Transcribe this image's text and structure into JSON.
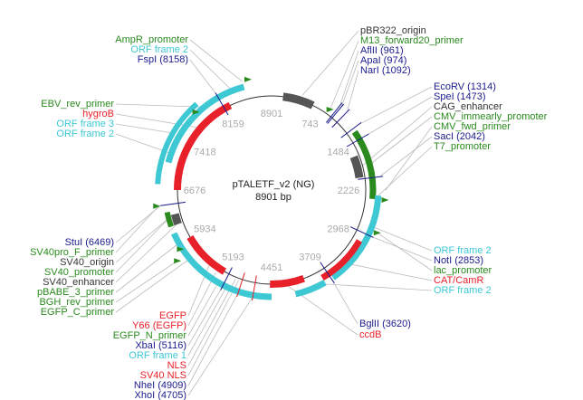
{
  "map": {
    "name": "pTALETF_v2 (NG)",
    "size": "8901 bp"
  },
  "ticks": [
    "8901",
    "743",
    "1484",
    "2226",
    "2968",
    "3709",
    "4451",
    "5193",
    "5934",
    "6676",
    "7418",
    "8159"
  ],
  "colors": {
    "promoter": "#2a8a1e",
    "orf": "#3ec8d4",
    "site": "#1a1a8c",
    "gene": "#e8202a",
    "origin": "#555555",
    "backbone": "#333333",
    "leader": "#bbbbbb"
  },
  "labels": {
    "ampr_promoter": "AmpR_promoter",
    "orf_frame_2_top": "ORF frame 2",
    "fspi": "FspI (8158)",
    "ebv_rev_primer": "EBV_rev_primer",
    "hygrob": "hygroB",
    "orf_frame_3": "ORF frame 3",
    "orf_frame_2_left": "ORF frame 2",
    "stui": "StuI (6469)",
    "sv40pro_f_primer": "SV40pro_F_primer",
    "sv40_origin": "SV40_origin",
    "sv40_promoter": "SV40_promoter",
    "sv40_enhancer": "SV40_enhancer",
    "pbabe_3_primer": "pBABE_3_primer",
    "bgh_rev_primer": "BGH_rev_primer",
    "egfp_c_primer": "EGFP_C_primer",
    "egfp": "EGFP",
    "y66_egfp": "Y66 (EGFP)",
    "egfp_n_primer": "EGFP_N_primer",
    "xbai": "XbaI (5116)",
    "orf_frame_1": "ORF frame 1",
    "nls": "NLS",
    "sv40_nls": "SV40 NLS",
    "nhei": "NheI (4909)",
    "xhoi": "XhoI (4705)",
    "pbr322_origin": "pBR322_origin",
    "m13_forward20_primer": "M13_forward20_primer",
    "aflii": "AflII (961)",
    "apai": "ApaI (974)",
    "nari": "NarI (1092)",
    "ecorv": "EcoRV (1314)",
    "spei": "SpeI (1473)",
    "cag_enhancer": "CAG_enhancer",
    "cmv_immearly_promoter": "CMV_immearly_promoter",
    "cmv_fwd_primer": "CMV_fwd_primer",
    "saci": "SacI (2042)",
    "t7_promoter": "T7_promoter",
    "orf_frame_2_r1": "ORF frame 2",
    "noti": "NotI (2853)",
    "lac_promoter": "lac_promoter",
    "cat_camr": "CAT/CamR",
    "orf_frame_2_r2": "ORF frame 2",
    "bglii": "BglII (3620)",
    "ccdb": "ccdB"
  }
}
